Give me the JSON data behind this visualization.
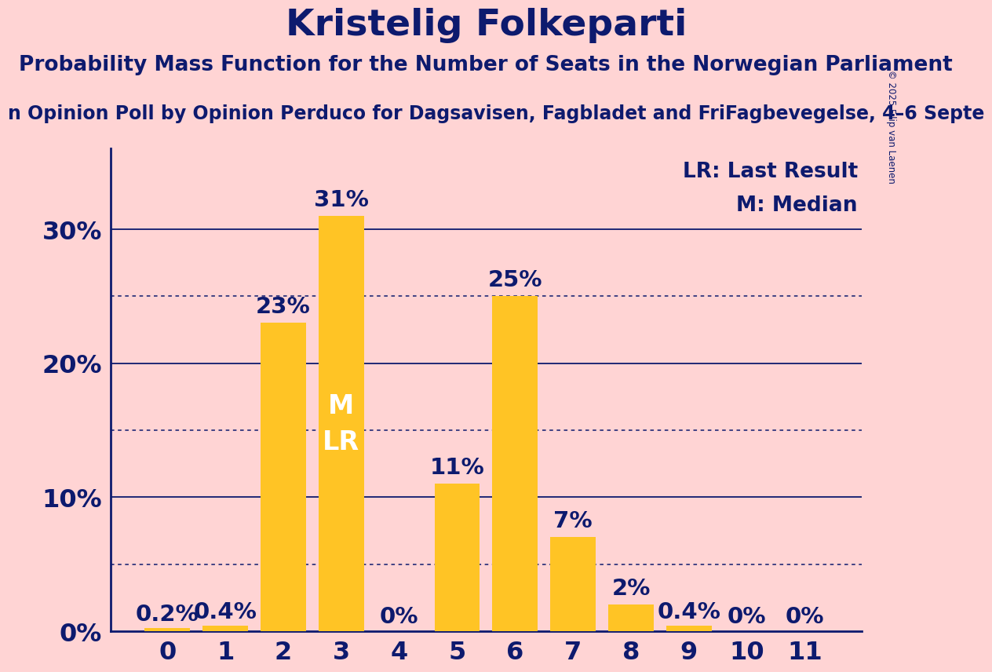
{
  "title": "Kristelig Folkeparti",
  "subtitle": "Probability Mass Function for the Number of Seats in the Norwegian Parliament",
  "source_text": "n Opinion Poll by Opinion Perduco for Dagsavisen, Fagbladet and FriFagbevegelse, 4–6 Septe",
  "copyright": "© 2025 Filip van Laenen",
  "categories": [
    0,
    1,
    2,
    3,
    4,
    5,
    6,
    7,
    8,
    9,
    10,
    11
  ],
  "values": [
    0.2,
    0.4,
    23.0,
    31.0,
    0.0,
    11.0,
    25.0,
    7.0,
    2.0,
    0.4,
    0.0,
    0.0
  ],
  "bar_color": "#FFC425",
  "background_color": "#FFD4D4",
  "text_color": "#0d1a6e",
  "title_fontsize": 34,
  "subtitle_fontsize": 19,
  "source_fontsize": 17,
  "ylabel_values": [
    0,
    10,
    20,
    30
  ],
  "ylim": [
    0,
    36
  ],
  "median_bar": 3,
  "lr_bar": 3,
  "legend_lr": "LR: Last Result",
  "legend_m": "M: Median",
  "bar_label_fontsize": 21,
  "axis_label_fontsize": 23,
  "dotted_gridlines": [
    5,
    15,
    25
  ],
  "solid_gridlines": [
    10,
    20,
    30
  ],
  "bar_width": 0.78
}
